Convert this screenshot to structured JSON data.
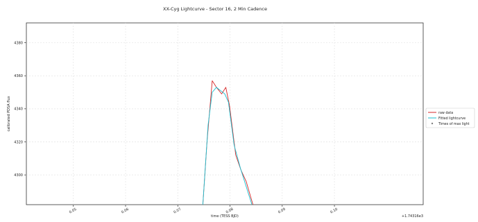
{
  "chart_data": {
    "type": "line",
    "title": "XX-Cyg Lightcurve - Sector 16, 2 Min Cadence",
    "xlabel": "time  (TESS BJD)",
    "ylabel": "calibrated PDSA flux",
    "x_offset_label": "+1.74316e3",
    "xlim": [
      0.041,
      0.117
    ],
    "ylim": [
      4282,
      4392
    ],
    "xticks": [
      {
        "value": 0.05,
        "label": "0.05"
      },
      {
        "value": 0.06,
        "label": "0.06"
      },
      {
        "value": 0.07,
        "label": "0.07"
      },
      {
        "value": 0.08,
        "label": "0.08"
      },
      {
        "value": 0.09,
        "label": "0.09"
      },
      {
        "value": 0.1,
        "label": "0.10"
      }
    ],
    "yticks": [
      {
        "value": 4300,
        "label": "4300"
      },
      {
        "value": 4320,
        "label": "4320"
      },
      {
        "value": 4340,
        "label": "4340"
      },
      {
        "value": 4360,
        "label": "4360"
      },
      {
        "value": 4380,
        "label": "4380"
      }
    ],
    "grid": true,
    "legend_position": "right",
    "series": [
      {
        "name": "raw data",
        "color": "#d62728",
        "x": [
          0.0748,
          0.0756,
          0.0766,
          0.0774,
          0.0784,
          0.0792,
          0.0799,
          0.0811,
          0.0821,
          0.0831,
          0.0844
        ],
        "y": [
          4282,
          4320,
          4357,
          4353,
          4349,
          4353,
          4342,
          4312,
          4303,
          4296,
          4282
        ]
      },
      {
        "name": "Fitted lightcurve",
        "color": "#17becf",
        "x": [
          0.0748,
          0.0758,
          0.0766,
          0.0774,
          0.0782,
          0.079,
          0.0797,
          0.0808,
          0.082,
          0.0832,
          0.0842
        ],
        "y": [
          4282,
          4330,
          4350,
          4353,
          4351,
          4349,
          4344,
          4318,
          4304,
          4292,
          4282
        ]
      },
      {
        "name": "Times of max light",
        "color": "#7f7f7f",
        "marker": "dot",
        "x": [],
        "y": []
      }
    ]
  }
}
